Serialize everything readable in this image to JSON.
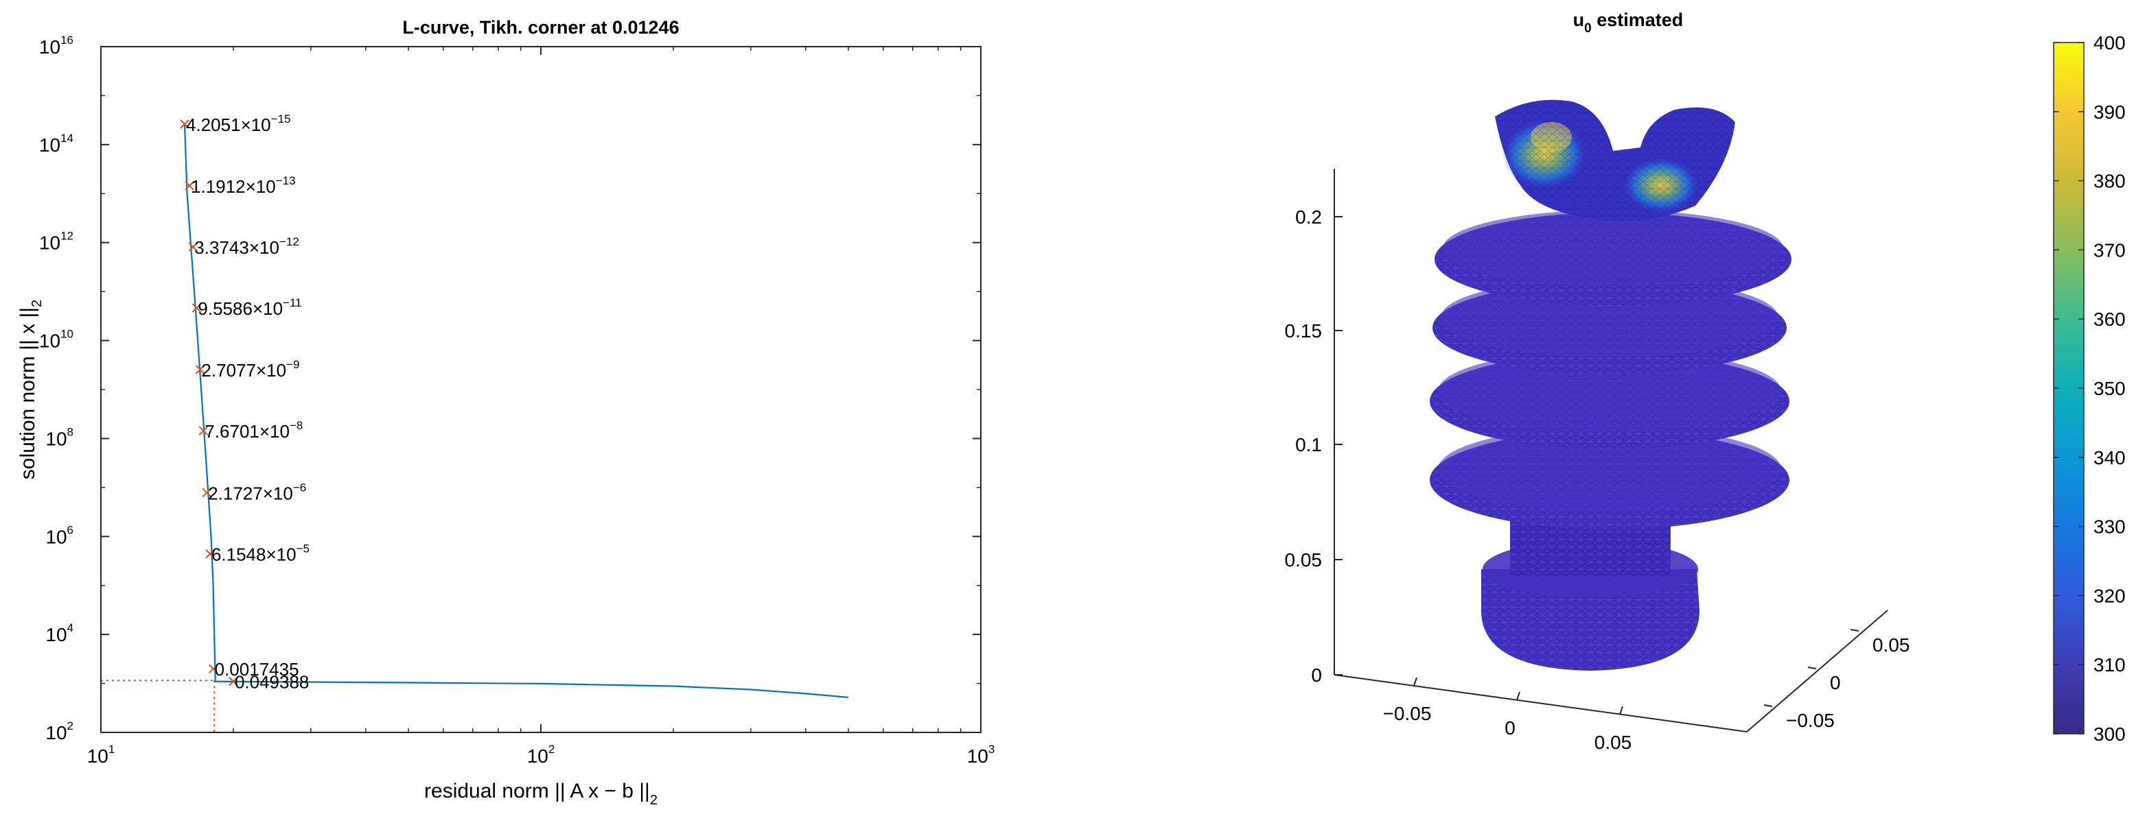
{
  "chart_data": [
    {
      "type": "line",
      "title": "L-curve, Tikh. corner at 0.01246",
      "xlabel": "residual norm || A x − b ||",
      "xlabel_sub": "2",
      "ylabel": "solution norm || x ||",
      "ylabel_sub": "2",
      "xscale": "log",
      "yscale": "log",
      "xlim": [
        10,
        1000
      ],
      "ylim": [
        100,
        10000000000000000
      ],
      "x_ticks": [
        {
          "base": "10",
          "exp": "1"
        },
        {
          "base": "10",
          "exp": "2"
        },
        {
          "base": "10",
          "exp": "3"
        }
      ],
      "y_ticks": [
        {
          "base": "10",
          "exp": "2"
        },
        {
          "base": "10",
          "exp": "4"
        },
        {
          "base": "10",
          "exp": "6"
        },
        {
          "base": "10",
          "exp": "8"
        },
        {
          "base": "10",
          "exp": "10"
        },
        {
          "base": "10",
          "exp": "12"
        },
        {
          "base": "10",
          "exp": "14"
        },
        {
          "base": "10",
          "exp": "16"
        }
      ],
      "grid": false,
      "line_color": "#0072BD",
      "marker_color": "#D95319",
      "curve": {
        "x": [
          15.5,
          15.7,
          16.0,
          16.3,
          16.6,
          16.9,
          17.2,
          17.5,
          17.8,
          18.0,
          18.2,
          20,
          30,
          50,
          100,
          200,
          300,
          400,
          500
        ],
        "y": [
          263000000000000,
          10000000000000,
          1000000000000,
          100000000000,
          10000000000,
          1000000000,
          100000000,
          10000000,
          1000000,
          100000,
          1100,
          1090,
          1070,
          1040,
          990,
          880,
          750,
          620,
          520
        ]
      },
      "annotations": [
        {
          "mant": "4.2051×10",
          "exp": "−15",
          "x": 15.5,
          "y": 263000000000000
        },
        {
          "mant": "1.1912×10",
          "exp": "−13",
          "x": 15.9,
          "y": 14500000000000
        },
        {
          "mant": "3.3743×10",
          "exp": "−12",
          "x": 16.2,
          "y": 815000000000
        },
        {
          "mant": "9.5586×10",
          "exp": "−11",
          "x": 16.5,
          "y": 46300000000
        },
        {
          "mant": "2.7077×10",
          "exp": "−9",
          "x": 16.8,
          "y": 2560000000
        },
        {
          "mant": "7.6701×10",
          "exp": "−8",
          "x": 17.1,
          "y": 144000000
        },
        {
          "mant": "2.1727×10",
          "exp": "−6",
          "x": 17.4,
          "y": 7870000
        },
        {
          "mant": "6.1548×10",
          "exp": "−5",
          "x": 17.7,
          "y": 442000
        },
        {
          "mant": "0.0017435",
          "exp": "",
          "x": 18.0,
          "y": 2000
        },
        {
          "mant": "0.049388",
          "exp": "",
          "x": 20.0,
          "y": 1100
        }
      ],
      "corner": {
        "x": 18.1,
        "y": 1150
      }
    },
    {
      "type": "surface-mesh-3d",
      "title_main": "u",
      "title_sub": "0",
      "title_rest": " estimated",
      "z_ticks": [
        "0",
        "0.05",
        "0.1",
        "0.15",
        "0.2"
      ],
      "x_ticks": [
        "−0.05",
        "0",
        "0.05"
      ],
      "y_ticks": [
        "−0.05",
        "0",
        "0.05"
      ],
      "colorbar": {
        "min": 300,
        "max": 400,
        "ticks": [
          "300",
          "310",
          "320",
          "330",
          "340",
          "350",
          "360",
          "370",
          "380",
          "390",
          "400"
        ],
        "colormap": "parula"
      },
      "mesh_color": "#3d2bb8"
    }
  ]
}
